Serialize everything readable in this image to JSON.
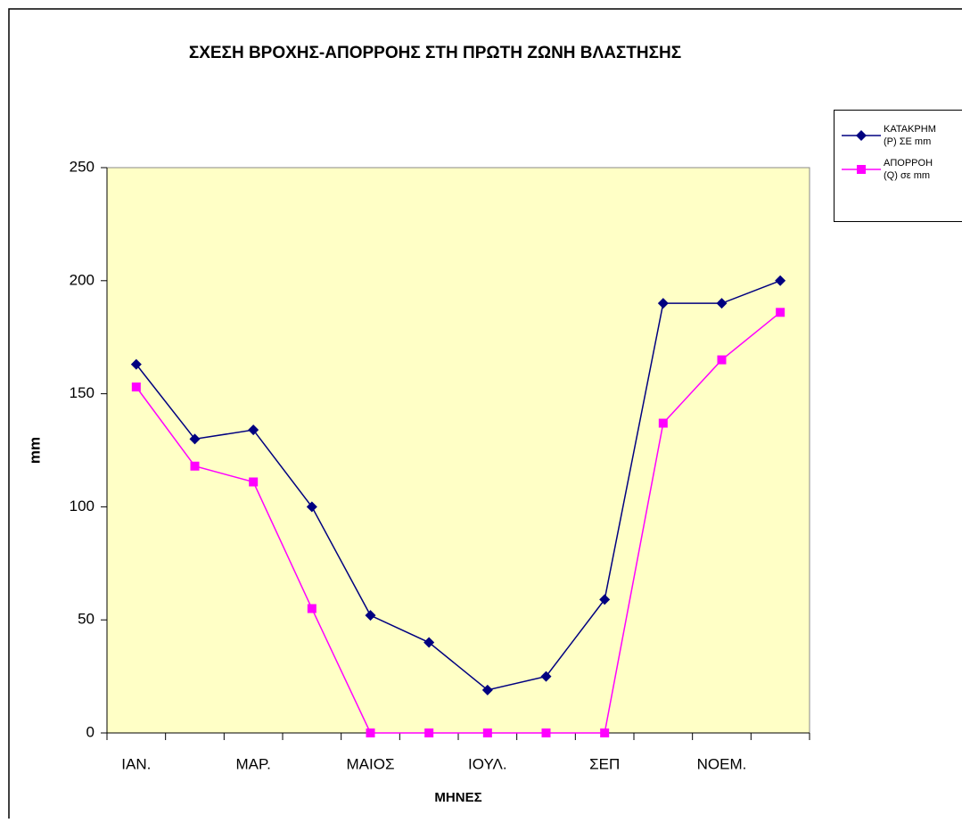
{
  "chart_data": {
    "type": "line",
    "title": "ΣΧΕΣΗ ΒΡΟΧΗΣ-ΑΠΟΡΡΟΗΣ ΣΤΗ ΠΡΩΤΗ ΖΩΝΗ ΒΛΑΣΤΗΣΗΣ",
    "xlabel": "ΜΗΝΕΣ",
    "ylabel": "mm",
    "categories": [
      "ΙΑΝ.",
      null,
      "ΜΑΡ.",
      null,
      "ΜΑΙΟΣ",
      null,
      "ΙΟΥΛ.",
      null,
      "ΣΕΠ",
      null,
      "ΝΟΕΜ.",
      null
    ],
    "series": [
      {
        "name": "ΚΑΤΑΚΡΗΜ\n(P) ΣΕ mm",
        "color": "#000080",
        "marker": "diamond",
        "values": [
          163,
          130,
          134,
          100,
          52,
          40,
          19,
          25,
          59,
          190,
          190,
          200
        ]
      },
      {
        "name": "ΑΠΟΡΡΟΗ\n(Q) σε mm",
        "color": "#ff00ff",
        "marker": "square",
        "values": [
          153,
          118,
          111,
          55,
          0,
          0,
          0,
          0,
          0,
          137,
          165,
          186
        ]
      }
    ],
    "ylim": [
      0,
      250
    ],
    "yticks": [
      0,
      50,
      100,
      150,
      200,
      250
    ],
    "legend": "right"
  }
}
